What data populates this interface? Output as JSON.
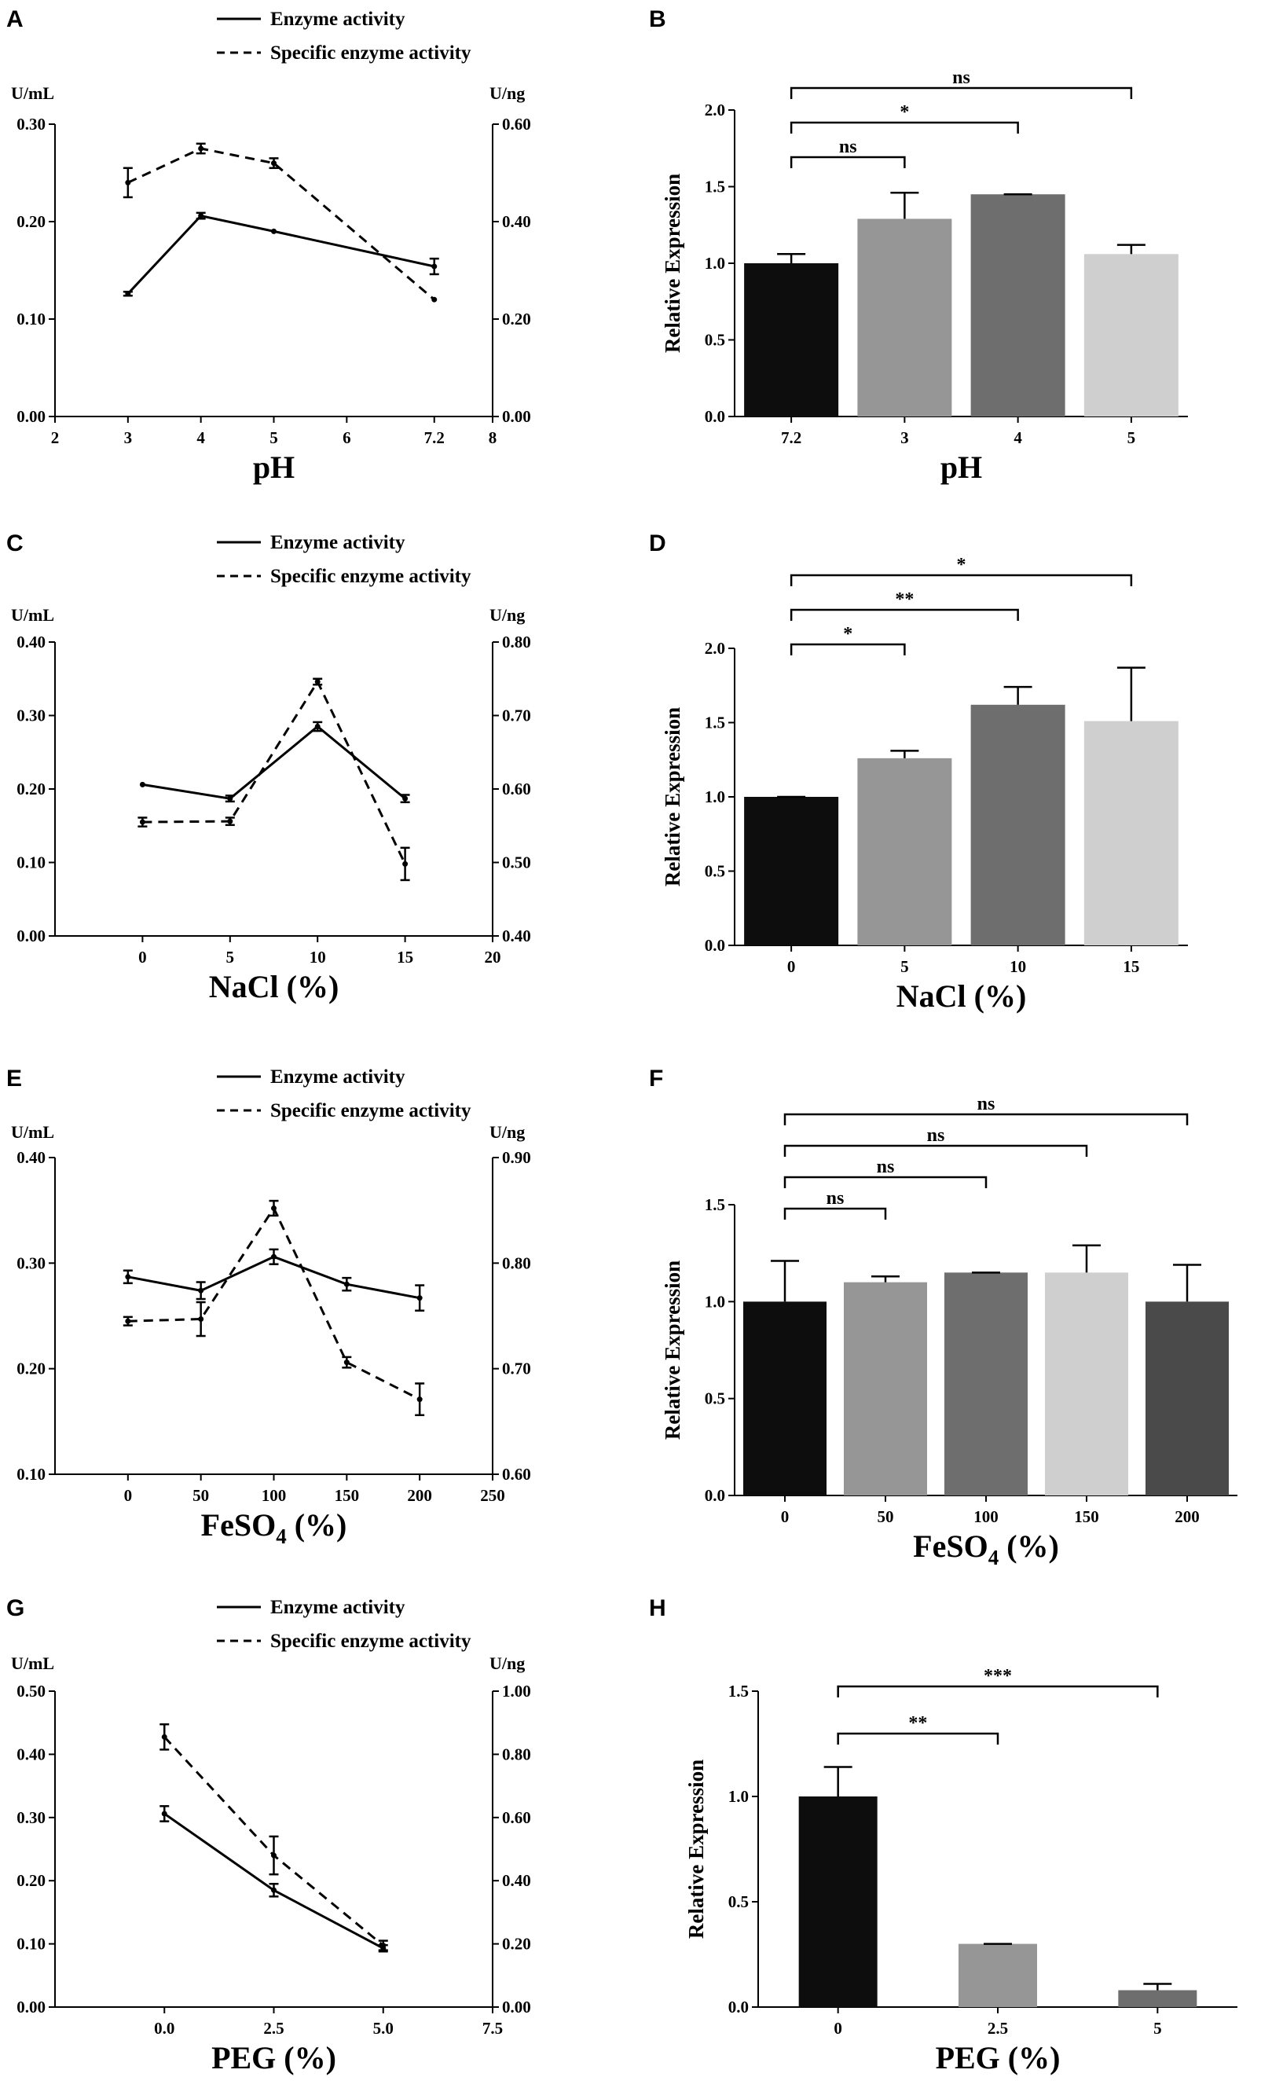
{
  "figure": {
    "legend_enzyme": "Enzyme activity",
    "legend_specific": "Specific enzyme activity",
    "left_unit": "U/mL",
    "right_unit": "U/ng",
    "bar_ylabel": "Relative Expression"
  },
  "chart_data": [
    {
      "id": "A",
      "panel_label": "A",
      "type": "line",
      "xlabel": "pH",
      "xlim": [
        2,
        8
      ],
      "xticks": [
        2,
        3,
        4,
        5,
        6,
        7.2,
        8
      ],
      "xtick_labels": [
        "2",
        "3",
        "4",
        "5",
        "6",
        "7.2",
        "8"
      ],
      "left_ylim": [
        0,
        0.3
      ],
      "left_ticks": [
        "0.00",
        "0.10",
        "0.20",
        "0.30"
      ],
      "right_ylim": [
        0,
        0.6
      ],
      "right_ticks": [
        "0.00",
        "0.20",
        "0.40",
        "0.60"
      ],
      "series": [
        {
          "name": "Enzyme activity",
          "axis": "left",
          "dash": false,
          "x": [
            3,
            4,
            5,
            7.2
          ],
          "y": [
            0.126,
            0.206,
            0.19,
            0.154
          ],
          "err": [
            0.002,
            0.003,
            0,
            0.008
          ]
        },
        {
          "name": "Specific enzyme activity",
          "axis": "right",
          "dash": true,
          "x": [
            3,
            4,
            5,
            7.2
          ],
          "y": [
            0.48,
            0.55,
            0.52,
            0.24
          ],
          "err": [
            0.03,
            0.01,
            0.01,
            0
          ]
        }
      ]
    },
    {
      "id": "B",
      "panel_label": "B",
      "type": "bar",
      "xlabel": "pH",
      "categories": [
        "7.2",
        "3",
        "4",
        "5"
      ],
      "values": [
        1.0,
        1.29,
        1.45,
        1.06
      ],
      "errors": [
        0.06,
        0.17,
        0.0,
        0.06
      ],
      "colors": [
        "#0d0d0d",
        "#969696",
        "#6e6e6e",
        "#cfcfcf"
      ],
      "ylim": [
        0,
        2.0
      ],
      "yticks": [
        "0.0",
        "0.5",
        "1.0",
        "1.5",
        "2.0"
      ],
      "comparisons": [
        {
          "from": 0,
          "to": 1,
          "label": "ns"
        },
        {
          "from": 0,
          "to": 2,
          "label": "*"
        },
        {
          "from": 0,
          "to": 3,
          "label": "ns"
        }
      ]
    },
    {
      "id": "C",
      "panel_label": "C",
      "type": "line",
      "xlabel": "NaCl (%)",
      "xlim": [
        -5,
        20
      ],
      "xticks": [
        0,
        5,
        10,
        15,
        20
      ],
      "xtick_labels": [
        "0",
        "5",
        "10",
        "15",
        "20"
      ],
      "left_ylim": [
        0,
        0.4
      ],
      "left_ticks": [
        "0.00",
        "0.10",
        "0.20",
        "0.30",
        "0.40"
      ],
      "right_ylim": [
        0.4,
        0.8
      ],
      "right_ticks": [
        "0.40",
        "0.50",
        "0.60",
        "0.70",
        "0.80"
      ],
      "series": [
        {
          "name": "Enzyme activity",
          "axis": "left",
          "dash": false,
          "x": [
            0,
            5,
            10,
            15
          ],
          "y": [
            0.206,
            0.187,
            0.285,
            0.187
          ],
          "err": [
            0,
            0.004,
            0.006,
            0.005
          ]
        },
        {
          "name": "Specific enzyme activity",
          "axis": "right",
          "dash": true,
          "x": [
            0,
            5,
            10,
            15
          ],
          "y": [
            0.555,
            0.556,
            0.746,
            0.498
          ],
          "err": [
            0.006,
            0.005,
            0.004,
            0.022
          ]
        }
      ]
    },
    {
      "id": "D",
      "panel_label": "D",
      "type": "bar",
      "xlabel": "NaCl (%)",
      "categories": [
        "0",
        "5",
        "10",
        "15"
      ],
      "values": [
        1.0,
        1.26,
        1.62,
        1.51
      ],
      "errors": [
        0.0,
        0.05,
        0.12,
        0.36
      ],
      "colors": [
        "#0d0d0d",
        "#969696",
        "#6e6e6e",
        "#cfcfcf"
      ],
      "ylim": [
        0,
        2.0
      ],
      "yticks": [
        "0.0",
        "0.5",
        "1.0",
        "1.5",
        "2.0"
      ],
      "comparisons": [
        {
          "from": 0,
          "to": 1,
          "label": "*"
        },
        {
          "from": 0,
          "to": 2,
          "label": "**"
        },
        {
          "from": 0,
          "to": 3,
          "label": "*"
        }
      ]
    },
    {
      "id": "E",
      "panel_label": "E",
      "type": "line",
      "xlabel": "FeSO",
      "xlabel_sub": "4",
      "xlabel_tail": " (%)",
      "xlim": [
        -50,
        250
      ],
      "xticks": [
        0,
        50,
        100,
        150,
        200,
        250
      ],
      "xtick_labels": [
        "0",
        "50",
        "100",
        "150",
        "200",
        "250"
      ],
      "left_ylim": [
        0.1,
        0.4
      ],
      "left_ticks": [
        "0.10",
        "0.20",
        "0.30",
        "0.40"
      ],
      "right_ylim": [
        0.6,
        0.9
      ],
      "right_ticks": [
        "0.60",
        "0.70",
        "0.80",
        "0.90"
      ],
      "series": [
        {
          "name": "Enzyme activity",
          "axis": "left",
          "dash": false,
          "x": [
            0,
            50,
            100,
            150,
            200
          ],
          "y": [
            0.287,
            0.274,
            0.306,
            0.28,
            0.267
          ],
          "err": [
            0.006,
            0.008,
            0.007,
            0.006,
            0.012
          ]
        },
        {
          "name": "Specific enzyme activity",
          "axis": "right",
          "dash": true,
          "x": [
            0,
            50,
            100,
            150,
            200
          ],
          "y": [
            0.745,
            0.747,
            0.852,
            0.706,
            0.671
          ],
          "err": [
            0.004,
            0.016,
            0.007,
            0.005,
            0.015
          ]
        }
      ]
    },
    {
      "id": "F",
      "panel_label": "F",
      "type": "bar",
      "xlabel": "FeSO",
      "xlabel_sub": "4",
      "xlabel_tail": " (%)",
      "categories": [
        "0",
        "50",
        "100",
        "150",
        "200"
      ],
      "values": [
        1.0,
        1.1,
        1.15,
        1.15,
        1.0
      ],
      "errors": [
        0.21,
        0.03,
        0.0,
        0.14,
        0.19
      ],
      "colors": [
        "#0d0d0d",
        "#969696",
        "#6e6e6e",
        "#cfcfcf",
        "#4a4a4a"
      ],
      "ylim": [
        0,
        1.5
      ],
      "yticks": [
        "0.0",
        "0.5",
        "1.0",
        "1.5"
      ],
      "comparisons": [
        {
          "from": 0,
          "to": 1,
          "label": "ns"
        },
        {
          "from": 0,
          "to": 2,
          "label": "ns"
        },
        {
          "from": 0,
          "to": 3,
          "label": "ns"
        },
        {
          "from": 0,
          "to": 4,
          "label": "ns"
        }
      ]
    },
    {
      "id": "G",
      "panel_label": "G",
      "type": "line",
      "xlabel": "PEG (%)",
      "xlim": [
        -2.5,
        7.5
      ],
      "xticks": [
        0,
        2.5,
        5,
        7.5
      ],
      "xtick_labels": [
        "0.0",
        "2.5",
        "5.0",
        "7.5"
      ],
      "left_ylim": [
        0,
        0.5
      ],
      "left_ticks": [
        "0.00",
        "0.10",
        "0.20",
        "0.30",
        "0.40",
        "0.50"
      ],
      "right_ylim": [
        0,
        1.0
      ],
      "right_ticks": [
        "0.00",
        "0.20",
        "0.40",
        "0.60",
        "0.80",
        "1.00"
      ],
      "series": [
        {
          "name": "Enzyme activity",
          "axis": "left",
          "dash": false,
          "x": [
            0,
            2.5,
            5
          ],
          "y": [
            0.306,
            0.185,
            0.093
          ],
          "err": [
            0.012,
            0.01,
            0.005
          ]
        },
        {
          "name": "Specific enzyme activity",
          "axis": "right",
          "dash": true,
          "x": [
            0,
            2.5,
            5
          ],
          "y": [
            0.855,
            0.48,
            0.195
          ],
          "err": [
            0.04,
            0.06,
            0.015
          ]
        }
      ]
    },
    {
      "id": "H",
      "panel_label": "H",
      "type": "bar",
      "xlabel": "PEG (%)",
      "categories": [
        "0",
        "2.5",
        "5"
      ],
      "values": [
        1.0,
        0.3,
        0.08
      ],
      "errors": [
        0.14,
        0.0,
        0.03
      ],
      "colors": [
        "#0d0d0d",
        "#969696",
        "#6e6e6e"
      ],
      "ylim": [
        0,
        1.5
      ],
      "yticks": [
        "0.0",
        "0.5",
        "1.0",
        "1.5"
      ],
      "comparisons": [
        {
          "from": 0,
          "to": 1,
          "label": "**"
        },
        {
          "from": 0,
          "to": 2,
          "label": "***"
        }
      ]
    }
  ]
}
